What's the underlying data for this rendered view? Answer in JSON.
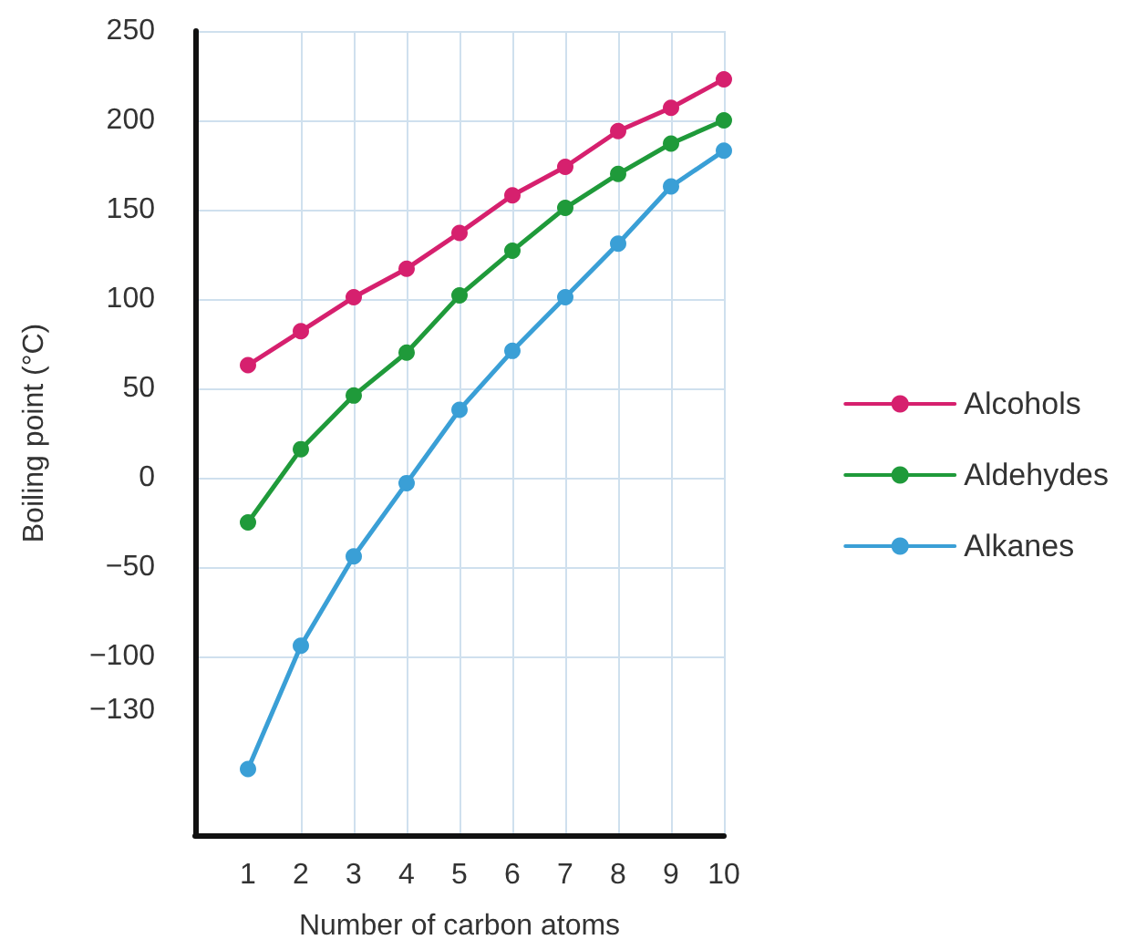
{
  "chart_data": {
    "type": "line",
    "xlabel": "Number of carbon atoms",
    "ylabel": "Boiling point (°C)",
    "x": [
      1,
      2,
      3,
      4,
      5,
      6,
      7,
      8,
      9,
      10
    ],
    "series": [
      {
        "name": "Alcohols",
        "color": "#d6206e",
        "values": [
          63,
          82,
          101,
          117,
          137,
          158,
          174,
          194,
          207,
          223
        ]
      },
      {
        "name": "Aldehydes",
        "color": "#1f9a3a",
        "values": [
          -25,
          16,
          46,
          70,
          102,
          127,
          151,
          170,
          187,
          200
        ]
      },
      {
        "name": "Alkanes",
        "color": "#3a9fd6",
        "values": [
          -163,
          -94,
          -44,
          -3,
          38,
          71,
          101,
          131,
          163,
          183
        ]
      }
    ],
    "xlim": [
      0,
      10
    ],
    "xticks": [
      1,
      2,
      3,
      4,
      5,
      6,
      7,
      8,
      9,
      10
    ],
    "ylim": [
      -200,
      250
    ],
    "yticks": [
      {
        "value": -130,
        "label": "−130"
      },
      {
        "value": -100,
        "label": "−100"
      },
      {
        "value": -50,
        "label": "−50"
      },
      0,
      50,
      100,
      150,
      200,
      250
    ],
    "grid": true,
    "legend": "right",
    "marker": "circle",
    "line_style": "solid"
  }
}
